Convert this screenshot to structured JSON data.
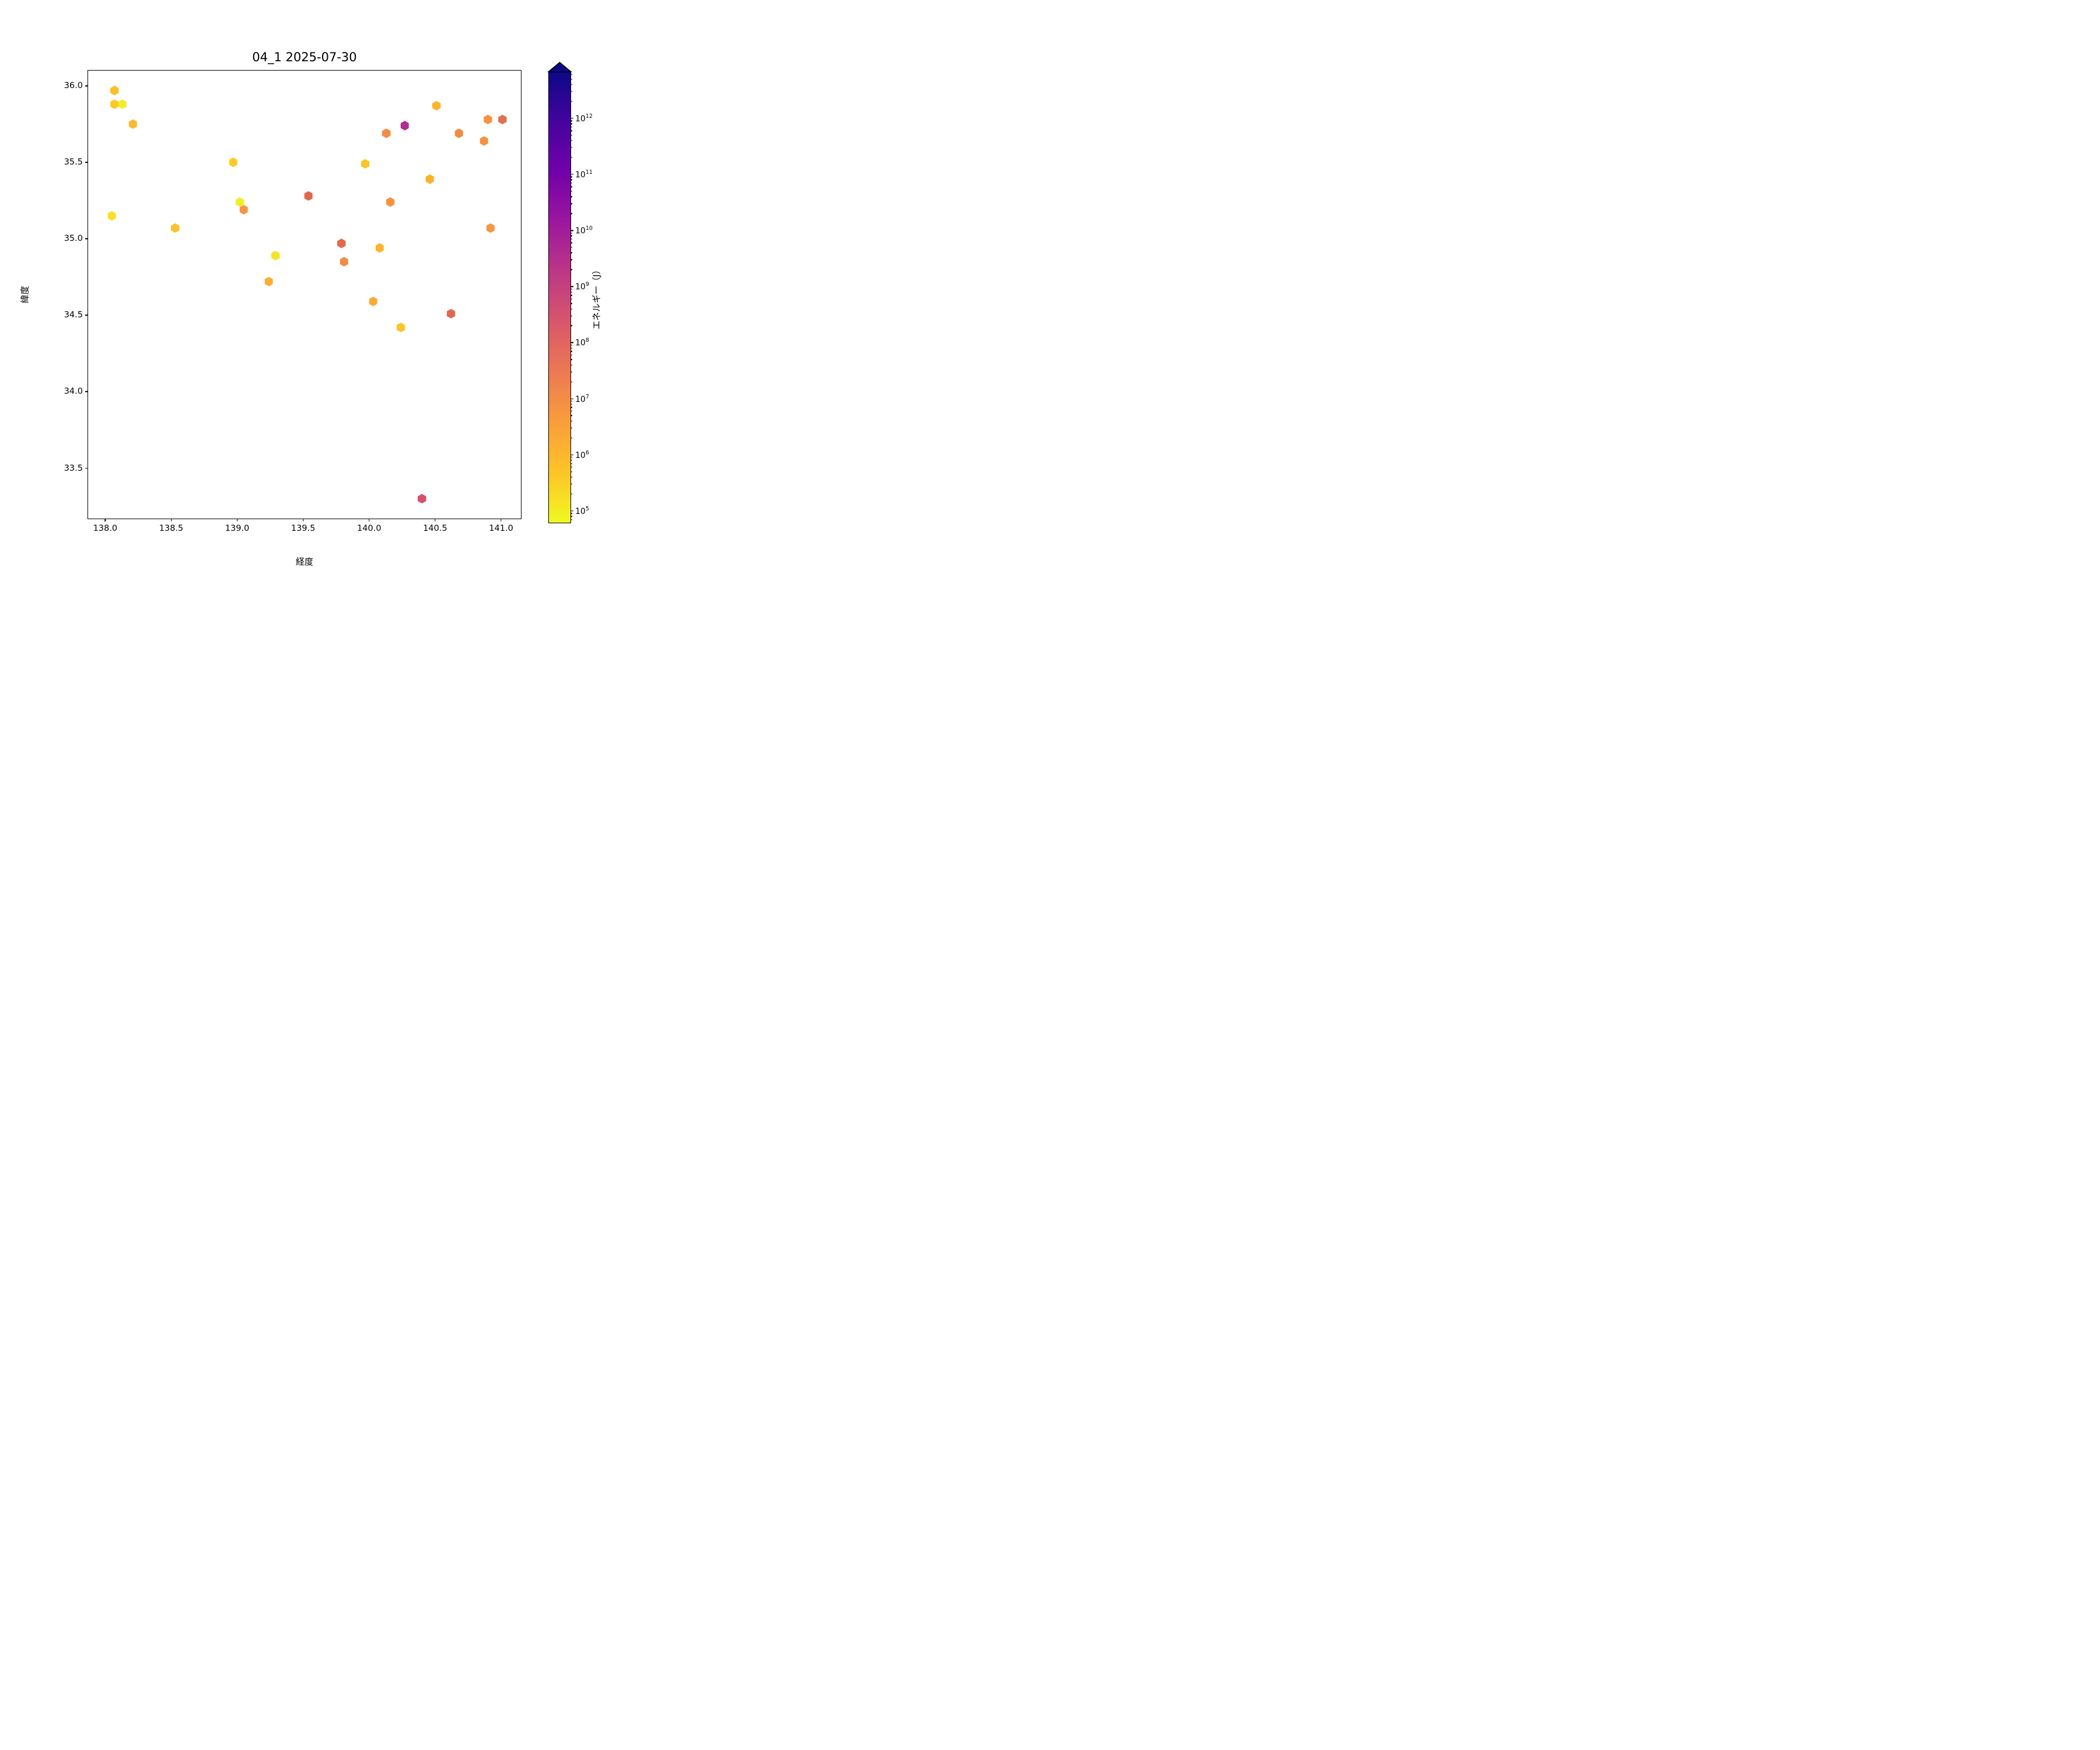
{
  "chart_data": {
    "type": "scatter",
    "title": "04_1 2025-07-30",
    "xlabel": "経度",
    "ylabel": "緯度",
    "xlim": [
      137.87,
      141.15
    ],
    "ylim": [
      33.17,
      36.1
    ],
    "x_ticks": [
      "138.0",
      "138.5",
      "139.0",
      "139.5",
      "140.0",
      "140.5",
      "141.0"
    ],
    "y_ticks": [
      "36.0",
      "35.5",
      "35.0",
      "34.5",
      "34.0",
      "33.5"
    ],
    "grid": false,
    "marker": "hexagon",
    "background": "#ffffff",
    "colorbar": {
      "label": "エネルギー（J）",
      "scale": "log",
      "tick_exponents": [
        12,
        11,
        10,
        9,
        8,
        7,
        6,
        5
      ],
      "log_range": [
        4.79,
        12.82
      ],
      "extend": "max",
      "extend_color": "#0d0887",
      "colormap": "plasma_r",
      "gradient_bottom_to_top": [
        "#f0f921",
        "#fdc527",
        "#fa9e3b",
        "#ed7953",
        "#d8576b",
        "#bd3786",
        "#9c179e",
        "#7201a8",
        "#46039f",
        "#0d0887"
      ]
    },
    "points": [
      {
        "lon": 138.07,
        "lat": 35.97,
        "energy_j": 600000,
        "color": "#fcbe2c"
      },
      {
        "lon": 138.07,
        "lat": 35.88,
        "energy_j": 400000,
        "color": "#fcca28"
      },
      {
        "lon": 138.13,
        "lat": 35.88,
        "energy_j": 120000,
        "color": "#f2ed27"
      },
      {
        "lon": 138.21,
        "lat": 35.75,
        "energy_j": 800000,
        "color": "#fcba30"
      },
      {
        "lon": 138.05,
        "lat": 35.15,
        "energy_j": 200000,
        "color": "#f6e127"
      },
      {
        "lon": 138.53,
        "lat": 35.07,
        "energy_j": 500000,
        "color": "#fcc22d"
      },
      {
        "lon": 138.97,
        "lat": 35.5,
        "energy_j": 400000,
        "color": "#fccb29"
      },
      {
        "lon": 139.02,
        "lat": 35.24,
        "energy_j": 100000,
        "color": "#f0f028"
      },
      {
        "lon": 139.05,
        "lat": 35.19,
        "energy_j": 4000000,
        "color": "#f79542"
      },
      {
        "lon": 139.29,
        "lat": 34.89,
        "energy_j": 180000,
        "color": "#f4e326"
      },
      {
        "lon": 139.24,
        "lat": 34.72,
        "energy_j": 1800000,
        "color": "#fcaf35"
      },
      {
        "lon": 139.54,
        "lat": 35.28,
        "energy_j": 70000000,
        "color": "#e2654e"
      },
      {
        "lon": 139.79,
        "lat": 34.97,
        "energy_j": 60000000,
        "color": "#e4684c"
      },
      {
        "lon": 139.81,
        "lat": 34.85,
        "energy_j": 8000000,
        "color": "#f28c46"
      },
      {
        "lon": 140.08,
        "lat": 34.94,
        "energy_j": 1200000,
        "color": "#fcb32e"
      },
      {
        "lon": 140.03,
        "lat": 34.59,
        "energy_j": 2000000,
        "color": "#fbaa38"
      },
      {
        "lon": 140.16,
        "lat": 35.24,
        "energy_j": 4500000,
        "color": "#f6933f"
      },
      {
        "lon": 140.13,
        "lat": 35.69,
        "energy_j": 7000000,
        "color": "#f18c44"
      },
      {
        "lon": 140.27,
        "lat": 35.74,
        "energy_j": 4000000000,
        "color": "#b12e90"
      },
      {
        "lon": 139.97,
        "lat": 35.49,
        "energy_j": 500000,
        "color": "#fcc42b"
      },
      {
        "lon": 140.51,
        "lat": 35.87,
        "energy_j": 1000000,
        "color": "#fcb62c"
      },
      {
        "lon": 140.9,
        "lat": 35.78,
        "energy_j": 5000000,
        "color": "#f6923e"
      },
      {
        "lon": 141.01,
        "lat": 35.78,
        "energy_j": 35000000,
        "color": "#e1714c"
      },
      {
        "lon": 140.68,
        "lat": 35.69,
        "energy_j": 8000000,
        "color": "#f28c42"
      },
      {
        "lon": 140.87,
        "lat": 35.64,
        "energy_j": 5500000,
        "color": "#f49140"
      },
      {
        "lon": 140.46,
        "lat": 35.39,
        "energy_j": 1300000,
        "color": "#fcb22b"
      },
      {
        "lon": 140.92,
        "lat": 35.07,
        "energy_j": 4000000,
        "color": "#f79643"
      },
      {
        "lon": 140.62,
        "lat": 34.51,
        "energy_j": 50000000,
        "color": "#e16a4e"
      },
      {
        "lon": 140.24,
        "lat": 34.42,
        "energy_j": 450000,
        "color": "#fcc52b"
      },
      {
        "lon": 140.4,
        "lat": 33.3,
        "energy_j": 400000000,
        "color": "#d9506c"
      }
    ]
  }
}
